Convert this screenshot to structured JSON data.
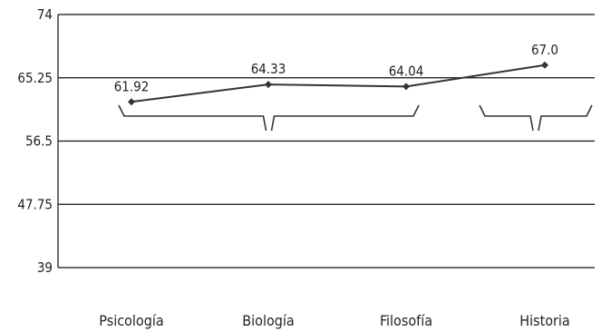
{
  "chart_data": {
    "type": "line",
    "categories": [
      "Psicología",
      "Biología",
      "Filosofía",
      "Historia"
    ],
    "series": [
      {
        "values": [
          61.92,
          64.33,
          64.04,
          67.0
        ]
      }
    ],
    "data_labels": [
      "61.92",
      "64.33",
      "64.04",
      "67.0"
    ],
    "y_ticks": [
      74,
      65.25,
      56.5,
      47.75,
      39
    ],
    "y_tick_labels": [
      "74",
      "65.25",
      "56.5",
      "47.75",
      "39"
    ],
    "ylim": [
      39,
      74
    ],
    "grid": true,
    "groupings": [
      {
        "from": 0,
        "to": 2
      },
      {
        "from": 3,
        "to": 3
      }
    ],
    "colors": {
      "line": "#333333",
      "grid": "#111111",
      "text": "#222222"
    }
  }
}
